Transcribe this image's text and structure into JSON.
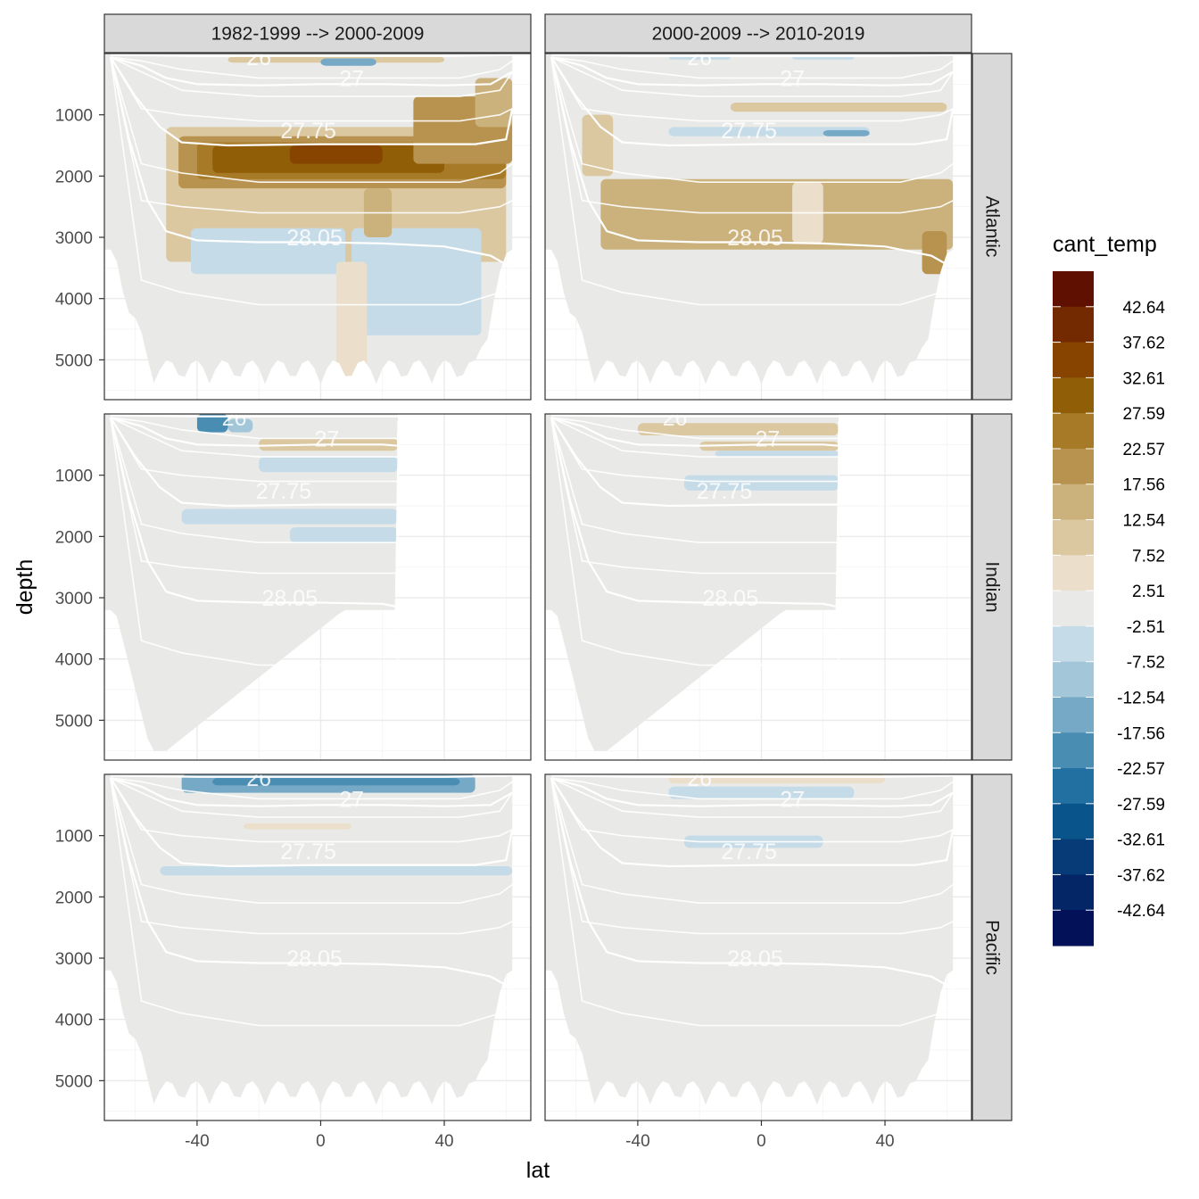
{
  "chart_data": {
    "type": "heatmap",
    "title": "",
    "xlabel": "lat",
    "ylabel": "depth",
    "xlim": [
      -70,
      68
    ],
    "ylim": [
      5650,
      0
    ],
    "x_ticks": [
      "-40",
      "0",
      "40"
    ],
    "x_tick_values": [
      -40,
      0,
      40
    ],
    "y_ticks": [
      "1000",
      "2000",
      "3000",
      "4000",
      "5000"
    ],
    "y_tick_values": [
      1000,
      2000,
      3000,
      4000,
      5000
    ],
    "facet_cols": [
      "1982-1999 --> 2000-2009",
      "2000-2009 --> 2010-2019"
    ],
    "facet_rows": [
      "Atlantic",
      "Indian",
      "Pacific"
    ],
    "legend": {
      "title": "cant_temp",
      "labels": [
        "42.64",
        "37.62",
        "32.61",
        "27.59",
        "22.57",
        "17.56",
        "12.54",
        "7.52",
        "2.51",
        "-2.51",
        "-7.52",
        "-12.54",
        "-17.56",
        "-22.57",
        "-27.59",
        "-32.61",
        "-37.62",
        "-42.64"
      ],
      "colors": [
        "#5f1000",
        "#742a00",
        "#864400",
        "#915e08",
        "#a67a27",
        "#b8924f",
        "#cbb27d",
        "#dbc7a0",
        "#ebdfcc",
        "#e9eae7",
        "#c6dbe8",
        "#a3c6d9",
        "#76a9c5",
        "#4a8db3",
        "#2270a1",
        "#0a548c",
        "#063b78",
        "#042566",
        "#021158"
      ]
    },
    "isopycnal_labels": [
      "26",
      "27",
      "27.75",
      "28.05"
    ],
    "series": [
      {
        "name": "isopycnal-26",
        "x": [
          -68,
          -55,
          -40,
          -20,
          0,
          20,
          40,
          55,
          62
        ],
        "y": [
          20,
          30,
          40,
          40,
          40,
          40,
          40,
          30,
          20
        ]
      },
      {
        "name": "isopycnal-27",
        "x": [
          -68,
          -58,
          -50,
          -40,
          -20,
          0,
          20,
          40,
          55,
          62
        ],
        "y": [
          60,
          200,
          400,
          500,
          520,
          500,
          500,
          520,
          500,
          300
        ]
      },
      {
        "name": "isopycnal-27.75",
        "x": [
          -68,
          -60,
          -52,
          -45,
          -30,
          0,
          30,
          50,
          60,
          62
        ],
        "y": [
          60,
          700,
          1200,
          1450,
          1500,
          1480,
          1480,
          1480,
          1400,
          900
        ]
      },
      {
        "name": "isopycnal-28.05",
        "x": [
          -68,
          -62,
          -56,
          -50,
          -40,
          -20,
          0,
          20,
          40,
          55,
          62
        ],
        "y": [
          60,
          1400,
          2400,
          2900,
          3050,
          3080,
          3080,
          3100,
          3150,
          3300,
          3500
        ]
      }
    ]
  }
}
